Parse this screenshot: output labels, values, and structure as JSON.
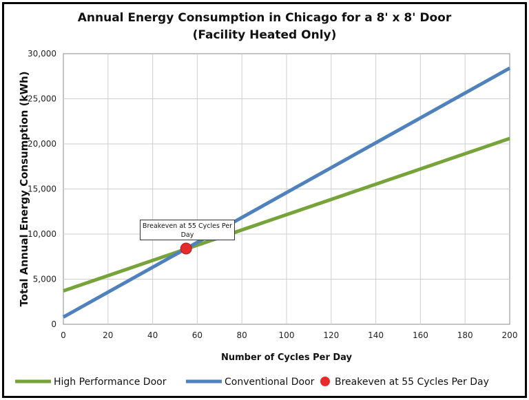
{
  "chart_data": {
    "type": "line",
    "title_line1": "Annual Energy Consumption in Chicago for a 8' x 8' Door",
    "title_line2": "(Facility Heated Only)",
    "xlabel": "Number of Cycles Per Day",
    "ylabel": "Total Annual Energy Consumption (kWh)",
    "xlim": [
      0,
      200
    ],
    "ylim": [
      0,
      30000
    ],
    "x_ticks": [
      0,
      20,
      40,
      60,
      80,
      100,
      120,
      140,
      160,
      180,
      200
    ],
    "y_ticks": [
      0,
      5000,
      10000,
      15000,
      20000,
      25000,
      30000
    ],
    "x_tick_labels": [
      "0",
      "20",
      "40",
      "60",
      "80",
      "100",
      "120",
      "140",
      "160",
      "180",
      "200"
    ],
    "y_tick_labels": [
      "0",
      "5,000",
      "10,000",
      "15,000",
      "20,000",
      "25,000",
      "30,000"
    ],
    "grid": true,
    "legend_position": "bottom",
    "series": [
      {
        "name": "High Performance Door",
        "color": "#76a33a",
        "x": [
          0,
          200
        ],
        "y": [
          3700,
          20600
        ]
      },
      {
        "name": "Conventional Door",
        "color": "#4f81bd",
        "x": [
          0,
          200
        ],
        "y": [
          800,
          28400
        ]
      }
    ],
    "points": [
      {
        "name": "Breakeven at 55 Cycles Per Day",
        "color": "#e52b2b",
        "x": 55,
        "y": 8400
      }
    ],
    "annotation": {
      "text": "Breakeven at 55 Cycles Per Day"
    }
  }
}
